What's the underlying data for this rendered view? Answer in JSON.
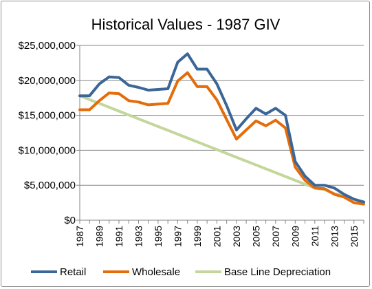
{
  "chart_data": {
    "type": "line",
    "title": "Historical Values - 1987 GIV",
    "xlabel": "",
    "ylabel": "",
    "x": [
      1987,
      1988,
      1989,
      1990,
      1991,
      1992,
      1993,
      1994,
      1995,
      1996,
      1997,
      1998,
      1999,
      2000,
      2001,
      2002,
      2003,
      2004,
      2005,
      2006,
      2007,
      2008,
      2009,
      2010,
      2011,
      2012,
      2013,
      2014,
      2015,
      2016
    ],
    "xlim": [
      1987,
      2016
    ],
    "ylim": [
      0,
      25000000
    ],
    "y_ticks": [
      0,
      5000000,
      10000000,
      15000000,
      20000000,
      25000000
    ],
    "y_tick_labels": [
      "$0",
      "$5,000,000",
      "$10,000,000",
      "$15,000,000",
      "$20,000,000",
      "$25,000,000"
    ],
    "x_tick_labels": [
      "1987",
      "1989",
      "1991",
      "1993",
      "1995",
      "1997",
      "1999",
      "2001",
      "2003",
      "2005",
      "2007",
      "2009",
      "2011",
      "2013",
      "2015"
    ],
    "grid": true,
    "legend_position": "bottom",
    "series": [
      {
        "name": "Retail",
        "color": "#3c6696",
        "values": [
          17800000,
          17800000,
          19500000,
          20500000,
          20400000,
          19300000,
          19000000,
          18600000,
          18700000,
          18800000,
          22600000,
          23800000,
          21600000,
          21600000,
          19500000,
          16400000,
          12900000,
          14500000,
          16000000,
          15200000,
          16000000,
          15000000,
          8400000,
          6300000,
          5000000,
          5000000,
          4600000,
          3700000,
          3000000,
          2600000
        ]
      },
      {
        "name": "Wholesale",
        "color": "#e46c0a",
        "values": [
          15800000,
          15800000,
          17100000,
          18200000,
          18100000,
          17100000,
          16900000,
          16500000,
          16600000,
          16700000,
          19900000,
          21100000,
          19100000,
          19100000,
          17200000,
          14400000,
          11600000,
          12900000,
          14200000,
          13500000,
          14300000,
          13200000,
          7600000,
          5700000,
          4600000,
          4500000,
          3700000,
          3300000,
          2500000,
          2300000
        ]
      },
      {
        "name": "Base Line Depreciation",
        "color": "#c3d69b",
        "values": [
          17800000,
          17250000,
          16700000,
          16150000,
          15600000,
          15050000,
          14500000,
          13950000,
          13400000,
          12850000,
          12300000,
          11750000,
          11200000,
          10650000,
          10100000,
          9550000,
          9000000,
          8450000,
          7900000,
          7350000,
          6800000,
          6250000,
          5700000,
          5150000,
          4600000,
          4350000,
          3800000,
          3500000,
          3000000,
          2600000
        ]
      }
    ]
  }
}
